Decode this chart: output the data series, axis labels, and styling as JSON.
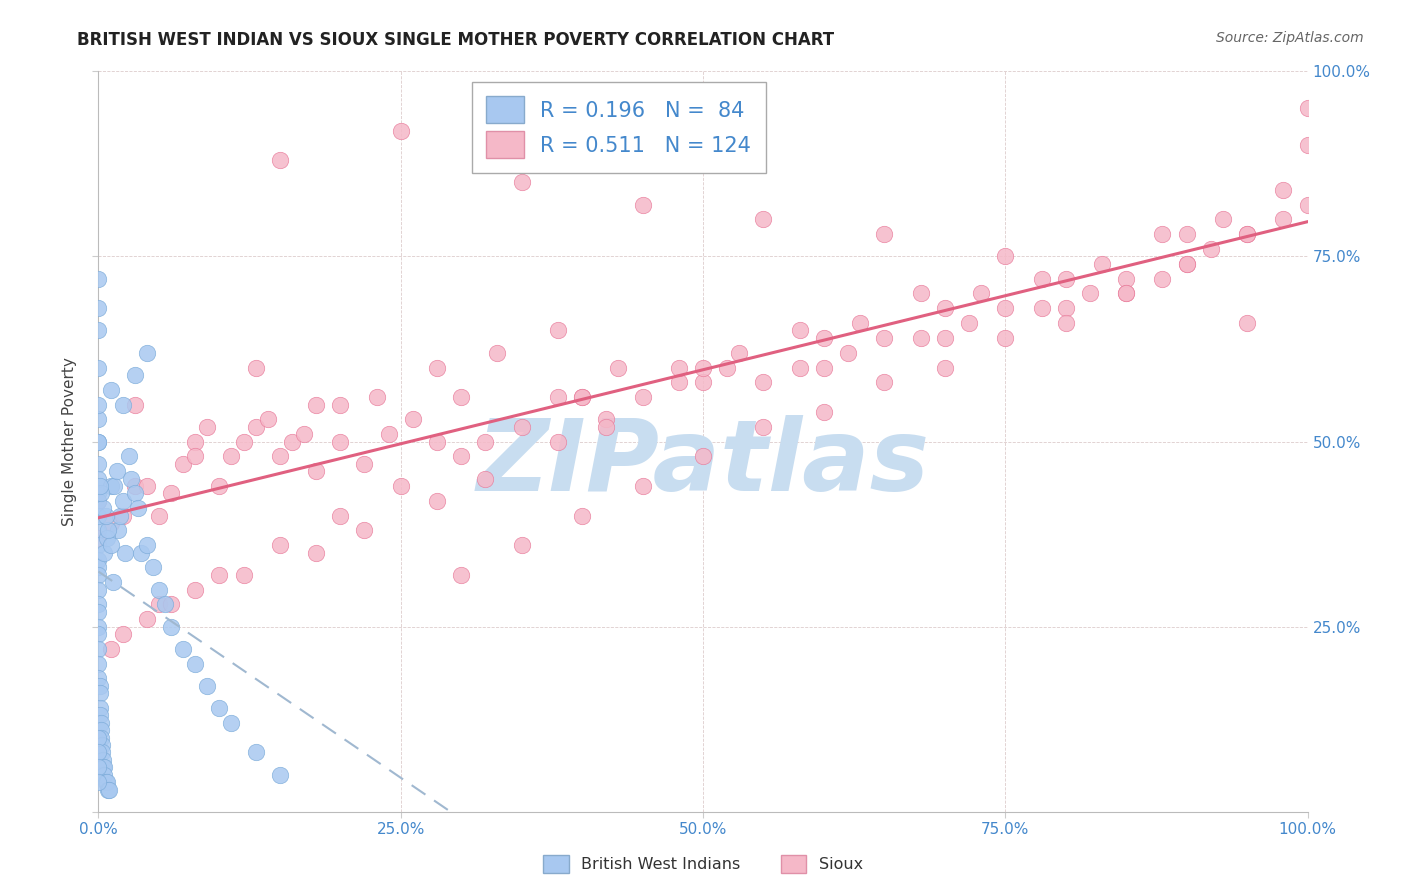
{
  "title": "BRITISH WEST INDIAN VS SIOUX SINGLE MOTHER POVERTY CORRELATION CHART",
  "source": "Source: ZipAtlas.com",
  "ylabel": "Single Mother Poverty",
  "blue_R": 0.196,
  "blue_N": 84,
  "pink_R": 0.511,
  "pink_N": 124,
  "blue_color": "#a8c8f0",
  "blue_edge_color": "#7aaad8",
  "pink_color": "#f5b8c8",
  "pink_edge_color": "#e87898",
  "blue_line_color": "#a0b8d0",
  "pink_line_color": "#e06080",
  "tick_color": "#4488cc",
  "watermark_color": "#c8ddf0",
  "legend_blue_label": "British West Indians",
  "legend_pink_label": "Sioux",
  "blue_scatter_x": [
    0.0,
    0.0,
    0.0,
    0.0,
    0.0,
    0.0,
    0.0,
    0.0,
    0.0,
    0.0,
    0.0,
    0.0,
    0.0,
    0.0,
    0.0,
    0.0,
    0.0,
    0.0,
    0.0,
    0.0,
    0.001,
    0.001,
    0.001,
    0.001,
    0.002,
    0.002,
    0.002,
    0.003,
    0.003,
    0.004,
    0.004,
    0.005,
    0.005,
    0.006,
    0.007,
    0.008,
    0.009,
    0.01,
    0.01,
    0.012,
    0.013,
    0.015,
    0.016,
    0.018,
    0.02,
    0.022,
    0.025,
    0.027,
    0.03,
    0.033,
    0.035,
    0.04,
    0.045,
    0.05,
    0.055,
    0.06,
    0.07,
    0.08,
    0.09,
    0.1,
    0.11,
    0.13,
    0.15,
    0.02,
    0.03,
    0.04,
    0.005,
    0.007,
    0.01,
    0.008,
    0.006,
    0.004,
    0.002,
    0.001,
    0.0,
    0.0,
    0.0,
    0.0,
    0.0,
    0.0,
    0.0,
    0.0,
    0.0,
    0.0
  ],
  "blue_scatter_y": [
    0.38,
    0.43,
    0.47,
    0.5,
    0.53,
    0.45,
    0.42,
    0.4,
    0.36,
    0.34,
    0.33,
    0.32,
    0.3,
    0.28,
    0.27,
    0.25,
    0.24,
    0.22,
    0.2,
    0.18,
    0.17,
    0.16,
    0.14,
    0.13,
    0.12,
    0.11,
    0.1,
    0.09,
    0.08,
    0.07,
    0.06,
    0.06,
    0.05,
    0.04,
    0.04,
    0.03,
    0.03,
    0.44,
    0.57,
    0.31,
    0.44,
    0.46,
    0.38,
    0.4,
    0.42,
    0.35,
    0.48,
    0.45,
    0.43,
    0.41,
    0.35,
    0.36,
    0.33,
    0.3,
    0.28,
    0.25,
    0.22,
    0.2,
    0.17,
    0.14,
    0.12,
    0.08,
    0.05,
    0.55,
    0.59,
    0.62,
    0.35,
    0.37,
    0.36,
    0.38,
    0.4,
    0.41,
    0.43,
    0.44,
    0.68,
    0.72,
    0.65,
    0.6,
    0.55,
    0.5,
    0.1,
    0.08,
    0.06,
    0.04
  ],
  "pink_scatter_x": [
    0.0,
    0.0,
    0.01,
    0.02,
    0.03,
    0.04,
    0.05,
    0.06,
    0.07,
    0.08,
    0.09,
    0.1,
    0.11,
    0.12,
    0.13,
    0.14,
    0.15,
    0.16,
    0.17,
    0.18,
    0.2,
    0.22,
    0.24,
    0.26,
    0.28,
    0.3,
    0.32,
    0.35,
    0.38,
    0.4,
    0.42,
    0.45,
    0.48,
    0.5,
    0.52,
    0.55,
    0.58,
    0.6,
    0.62,
    0.65,
    0.68,
    0.7,
    0.72,
    0.75,
    0.78,
    0.8,
    0.82,
    0.85,
    0.88,
    0.9,
    0.92,
    0.95,
    0.98,
    1.0,
    1.0,
    0.05,
    0.1,
    0.15,
    0.2,
    0.25,
    0.3,
    0.35,
    0.4,
    0.45,
    0.5,
    0.55,
    0.6,
    0.65,
    0.7,
    0.75,
    0.8,
    0.85,
    0.9,
    0.95,
    0.03,
    0.08,
    0.13,
    0.18,
    0.23,
    0.28,
    0.33,
    0.38,
    0.43,
    0.48,
    0.53,
    0.58,
    0.63,
    0.68,
    0.73,
    0.78,
    0.83,
    0.88,
    0.93,
    0.98,
    0.2,
    0.3,
    0.4,
    0.5,
    0.6,
    0.7,
    0.8,
    0.9,
    0.15,
    0.25,
    0.35,
    0.45,
    0.55,
    0.65,
    0.75,
    0.85,
    0.95,
    1.0,
    0.42,
    0.38,
    0.32,
    0.28,
    0.22,
    0.18,
    0.12,
    0.08,
    0.06,
    0.04,
    0.02,
    0.01
  ],
  "pink_scatter_y": [
    0.37,
    0.42,
    0.39,
    0.4,
    0.44,
    0.44,
    0.4,
    0.43,
    0.47,
    0.5,
    0.52,
    0.44,
    0.48,
    0.5,
    0.52,
    0.53,
    0.48,
    0.5,
    0.51,
    0.46,
    0.5,
    0.47,
    0.51,
    0.53,
    0.5,
    0.48,
    0.5,
    0.52,
    0.56,
    0.56,
    0.53,
    0.56,
    0.58,
    0.58,
    0.6,
    0.58,
    0.6,
    0.6,
    0.62,
    0.64,
    0.64,
    0.64,
    0.66,
    0.68,
    0.68,
    0.68,
    0.7,
    0.72,
    0.72,
    0.74,
    0.76,
    0.78,
    0.8,
    0.82,
    0.9,
    0.28,
    0.32,
    0.36,
    0.4,
    0.44,
    0.32,
    0.36,
    0.4,
    0.44,
    0.48,
    0.52,
    0.54,
    0.58,
    0.6,
    0.64,
    0.66,
    0.7,
    0.74,
    0.78,
    0.55,
    0.48,
    0.6,
    0.55,
    0.56,
    0.6,
    0.62,
    0.65,
    0.6,
    0.6,
    0.62,
    0.65,
    0.66,
    0.7,
    0.7,
    0.72,
    0.74,
    0.78,
    0.8,
    0.84,
    0.55,
    0.56,
    0.56,
    0.6,
    0.64,
    0.68,
    0.72,
    0.78,
    0.88,
    0.92,
    0.85,
    0.82,
    0.8,
    0.78,
    0.75,
    0.7,
    0.66,
    0.95,
    0.52,
    0.5,
    0.45,
    0.42,
    0.38,
    0.35,
    0.32,
    0.3,
    0.28,
    0.26,
    0.24,
    0.22
  ]
}
